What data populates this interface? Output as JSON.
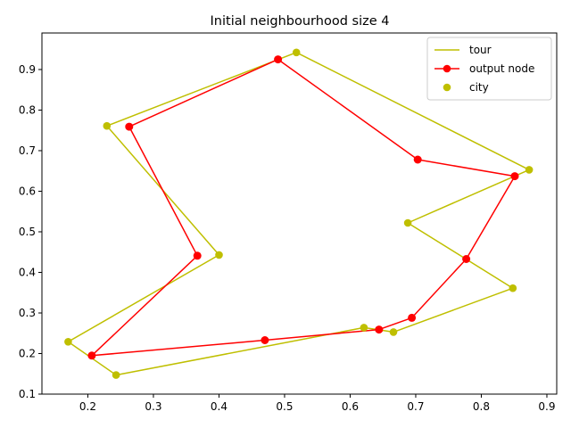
{
  "chart_data": {
    "type": "line",
    "title": "Initial neighbourhood size 4",
    "xlabel": "",
    "ylabel": "",
    "xlim": [
      0.13,
      0.915
    ],
    "ylim": [
      0.1,
      0.99
    ],
    "xticks": [
      {
        "value": 0.2,
        "label": "0.2"
      },
      {
        "value": 0.3,
        "label": "0.3"
      },
      {
        "value": 0.4,
        "label": "0.4"
      },
      {
        "value": 0.5,
        "label": "0.5"
      },
      {
        "value": 0.6,
        "label": "0.6"
      },
      {
        "value": 0.7,
        "label": "0.7"
      },
      {
        "value": 0.8,
        "label": "0.8"
      },
      {
        "value": 0.9,
        "label": "0.9"
      }
    ],
    "yticks": [
      {
        "value": 0.1,
        "label": "0.1"
      },
      {
        "value": 0.2,
        "label": "0.2"
      },
      {
        "value": 0.3,
        "label": "0.3"
      },
      {
        "value": 0.4,
        "label": "0.4"
      },
      {
        "value": 0.5,
        "label": "0.5"
      },
      {
        "value": 0.6,
        "label": "0.6"
      },
      {
        "value": 0.7,
        "label": "0.7"
      },
      {
        "value": 0.8,
        "label": "0.8"
      },
      {
        "value": 0.9,
        "label": "0.9"
      }
    ],
    "grid": false,
    "legend_position": "top-right",
    "series": [
      {
        "name": "tour",
        "kind": "line",
        "color": "#bfbf00",
        "points": [
          [
            0.518,
            0.942
          ],
          [
            0.873,
            0.653
          ],
          [
            0.688,
            0.522
          ],
          [
            0.848,
            0.361
          ],
          [
            0.666,
            0.253
          ],
          [
            0.621,
            0.264
          ],
          [
            0.243,
            0.147
          ],
          [
            0.17,
            0.229
          ],
          [
            0.4,
            0.443
          ],
          [
            0.229,
            0.761
          ],
          [
            0.518,
            0.942
          ]
        ]
      },
      {
        "name": "output node",
        "kind": "line-marker",
        "color": "#ff0000",
        "points": [
          [
            0.49,
            0.925
          ],
          [
            0.703,
            0.678
          ],
          [
            0.851,
            0.637
          ],
          [
            0.777,
            0.433
          ],
          [
            0.694,
            0.288
          ],
          [
            0.644,
            0.259
          ],
          [
            0.47,
            0.233
          ],
          [
            0.206,
            0.195
          ],
          [
            0.367,
            0.441
          ],
          [
            0.263,
            0.759
          ],
          [
            0.49,
            0.925
          ]
        ]
      },
      {
        "name": "city",
        "kind": "scatter",
        "color": "#bfbf00",
        "points": [
          [
            0.518,
            0.942
          ],
          [
            0.873,
            0.653
          ],
          [
            0.688,
            0.522
          ],
          [
            0.848,
            0.361
          ],
          [
            0.666,
            0.253
          ],
          [
            0.621,
            0.264
          ],
          [
            0.243,
            0.147
          ],
          [
            0.17,
            0.229
          ],
          [
            0.4,
            0.443
          ],
          [
            0.229,
            0.761
          ]
        ]
      }
    ]
  }
}
